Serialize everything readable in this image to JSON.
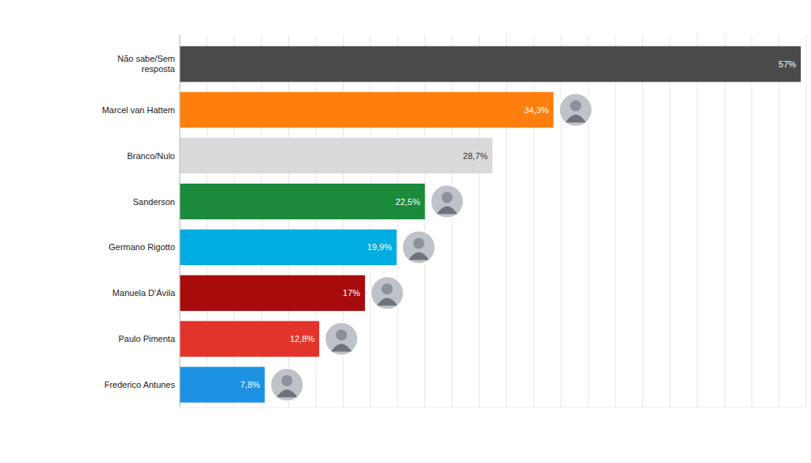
{
  "chart_data": {
    "type": "bar",
    "orientation": "horizontal",
    "categories": [
      "Não sabe/Sem resposta",
      "Marcel van Hattem",
      "Branco/Nulo",
      "Sanderson",
      "Germano Rigotto",
      "Manuela D'Ávila",
      "Paulo Pimenta",
      "Frederico Antunes"
    ],
    "values": [
      57,
      34.3,
      28.7,
      22.5,
      19.9,
      17,
      12.8,
      7.8
    ],
    "value_labels": [
      "57%",
      "34,3%",
      "28,7%",
      "22,5%",
      "19,9%",
      "17%",
      "12,8%",
      "7,8%"
    ],
    "colors": [
      "#4a4a4a",
      "#ff7f0e",
      "#dadada",
      "#1a8a3b",
      "#00ade2",
      "#a80b0b",
      "#e3342b",
      "#1d92e3"
    ],
    "xlim": [
      0,
      57.5
    ],
    "xticks": [
      0,
      2.5,
      5,
      7.5,
      10,
      12.5,
      15,
      17.5,
      20,
      22.5,
      25,
      27.5,
      30,
      32.5,
      35,
      37.5,
      40,
      42.5,
      45,
      47.5,
      50,
      52.5,
      55,
      57.5
    ],
    "grid": true,
    "data_labels": true,
    "tick_labels": false
  }
}
